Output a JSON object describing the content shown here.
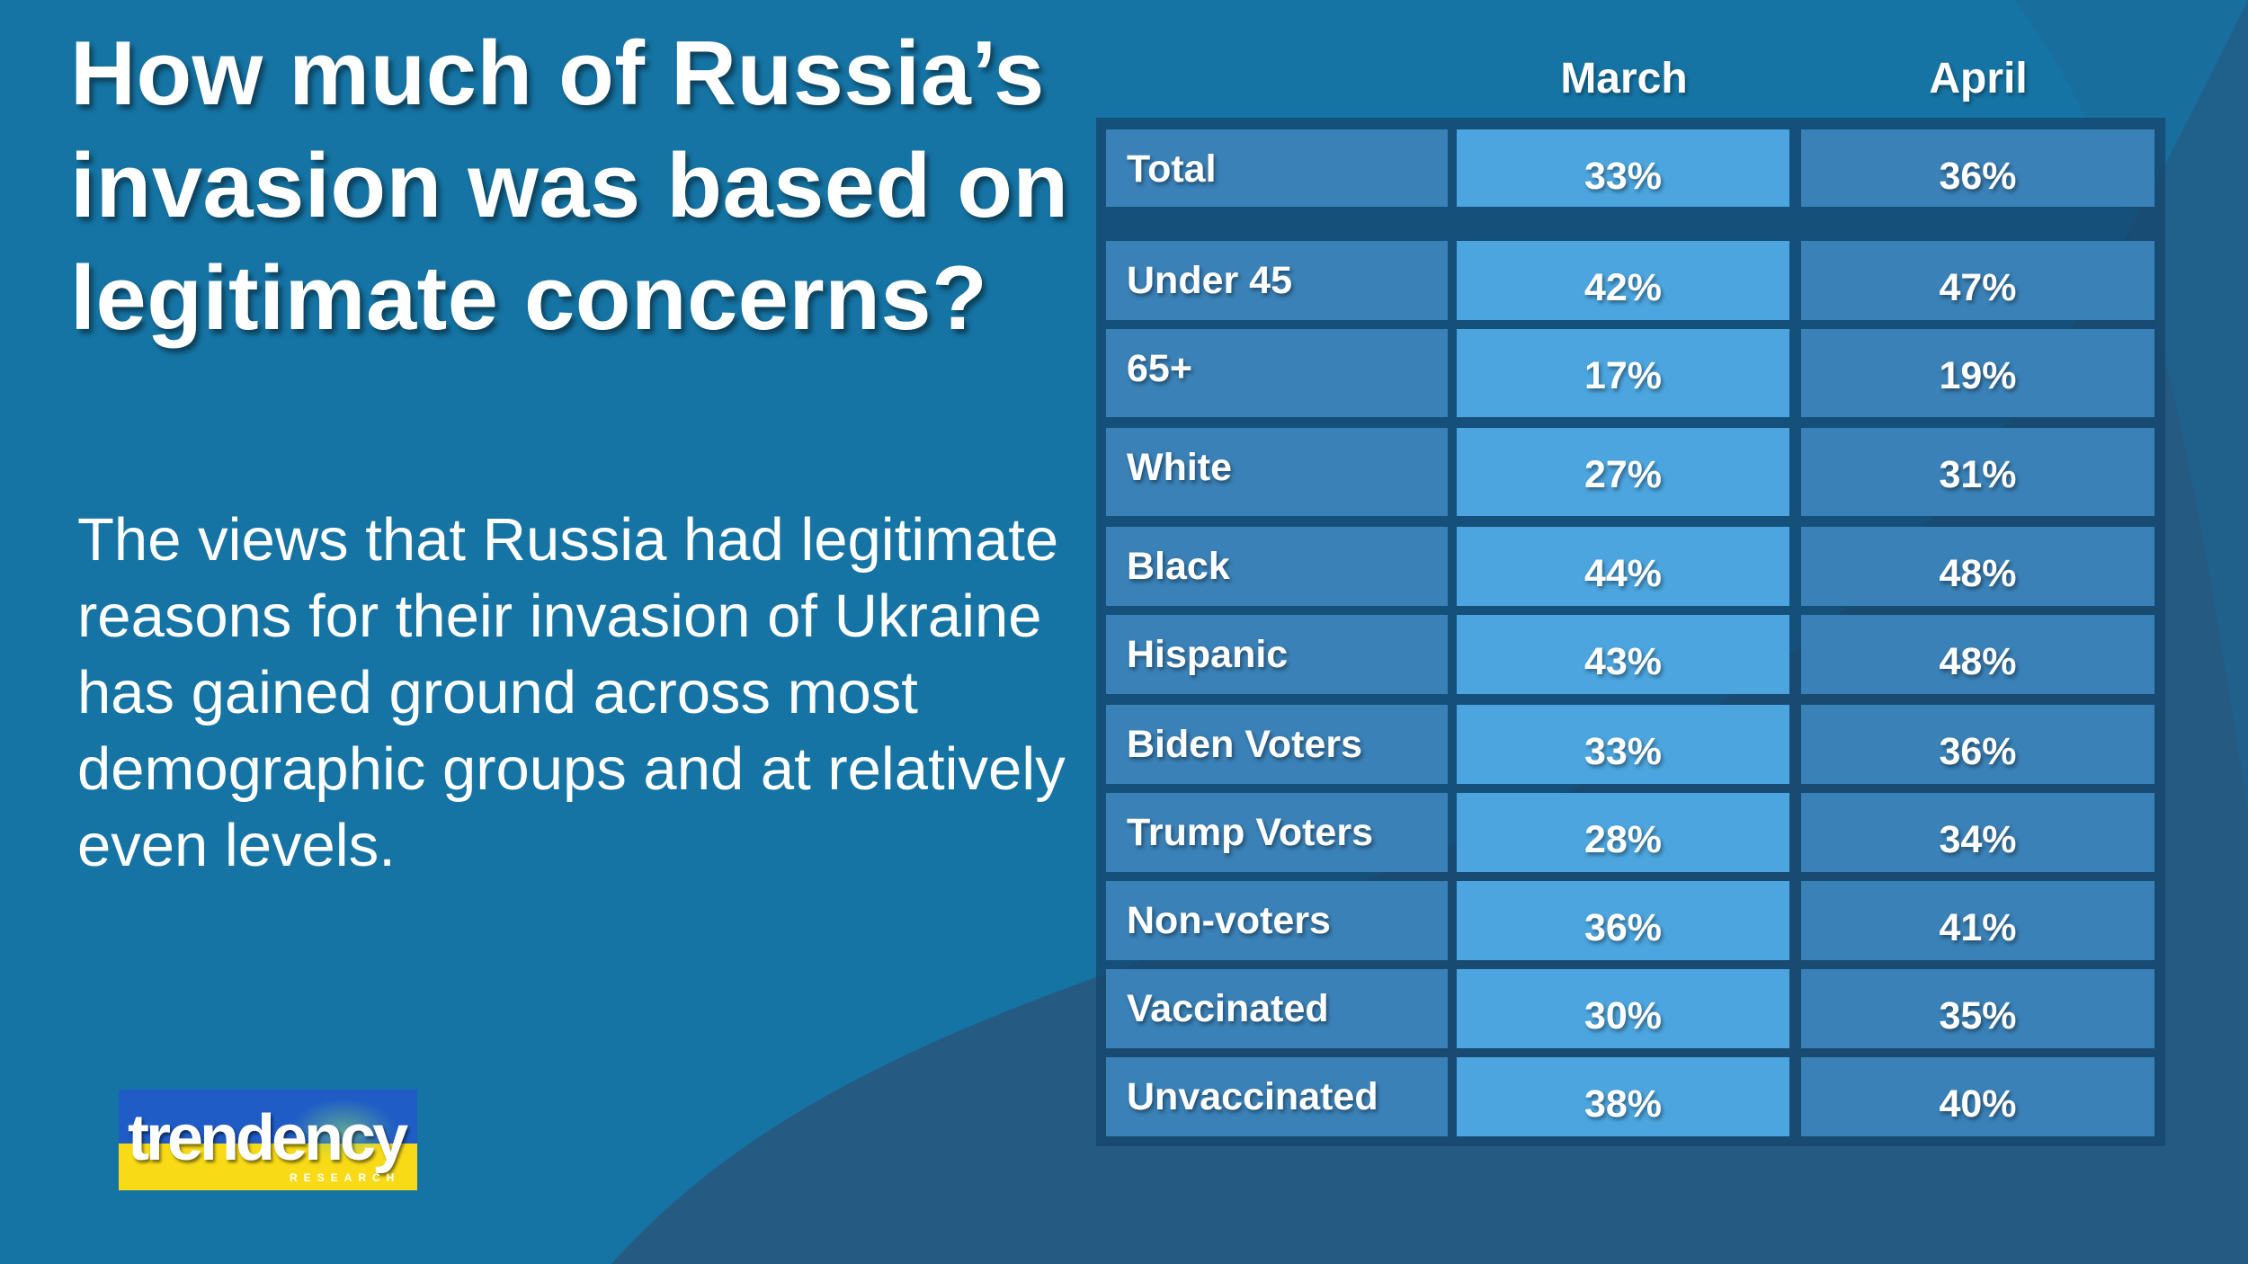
{
  "title": "How much of Russia’s invasion was based on legitimate concerns?",
  "description": "The views that Russia had legitimate reasons for their invasion of Ukraine has gained ground across most demographic groups and at relatively even levels.",
  "logo": {
    "name": "trendency",
    "subtitle": "RESEARCH",
    "colors": [
      "#1f5cc6",
      "#f8db16"
    ]
  },
  "colors": {
    "background": "#1574a4",
    "table": "#16466e",
    "label_cell": "#3a81b7",
    "march_cell": "#4ca5de",
    "april_cell": "#3a81b7"
  },
  "chart_data": {
    "type": "table",
    "title": "How much of Russia’s invasion was based on legitimate concerns?",
    "columns": [
      "March",
      "April"
    ],
    "rows": [
      {
        "label": "Total",
        "march": "33%",
        "april": "36%"
      },
      {
        "label": "Under 45",
        "march": "42%",
        "april": "47%"
      },
      {
        "label": "65+",
        "march": "17%",
        "april": "19%"
      },
      {
        "label": "White",
        "march": "27%",
        "april": "31%"
      },
      {
        "label": "Black",
        "march": "44%",
        "april": "48%"
      },
      {
        "label": "Hispanic",
        "march": "43%",
        "april": "48%"
      },
      {
        "label": "Biden Voters",
        "march": "33%",
        "april": "36%"
      },
      {
        "label": "Trump Voters",
        "march": "28%",
        "april": "34%"
      },
      {
        "label": "Non-voters",
        "march": "36%",
        "april": "41%"
      },
      {
        "label": "Vaccinated",
        "march": "30%",
        "april": "35%"
      },
      {
        "label": "Unvaccinated",
        "march": "38%",
        "april": "40%"
      }
    ]
  }
}
